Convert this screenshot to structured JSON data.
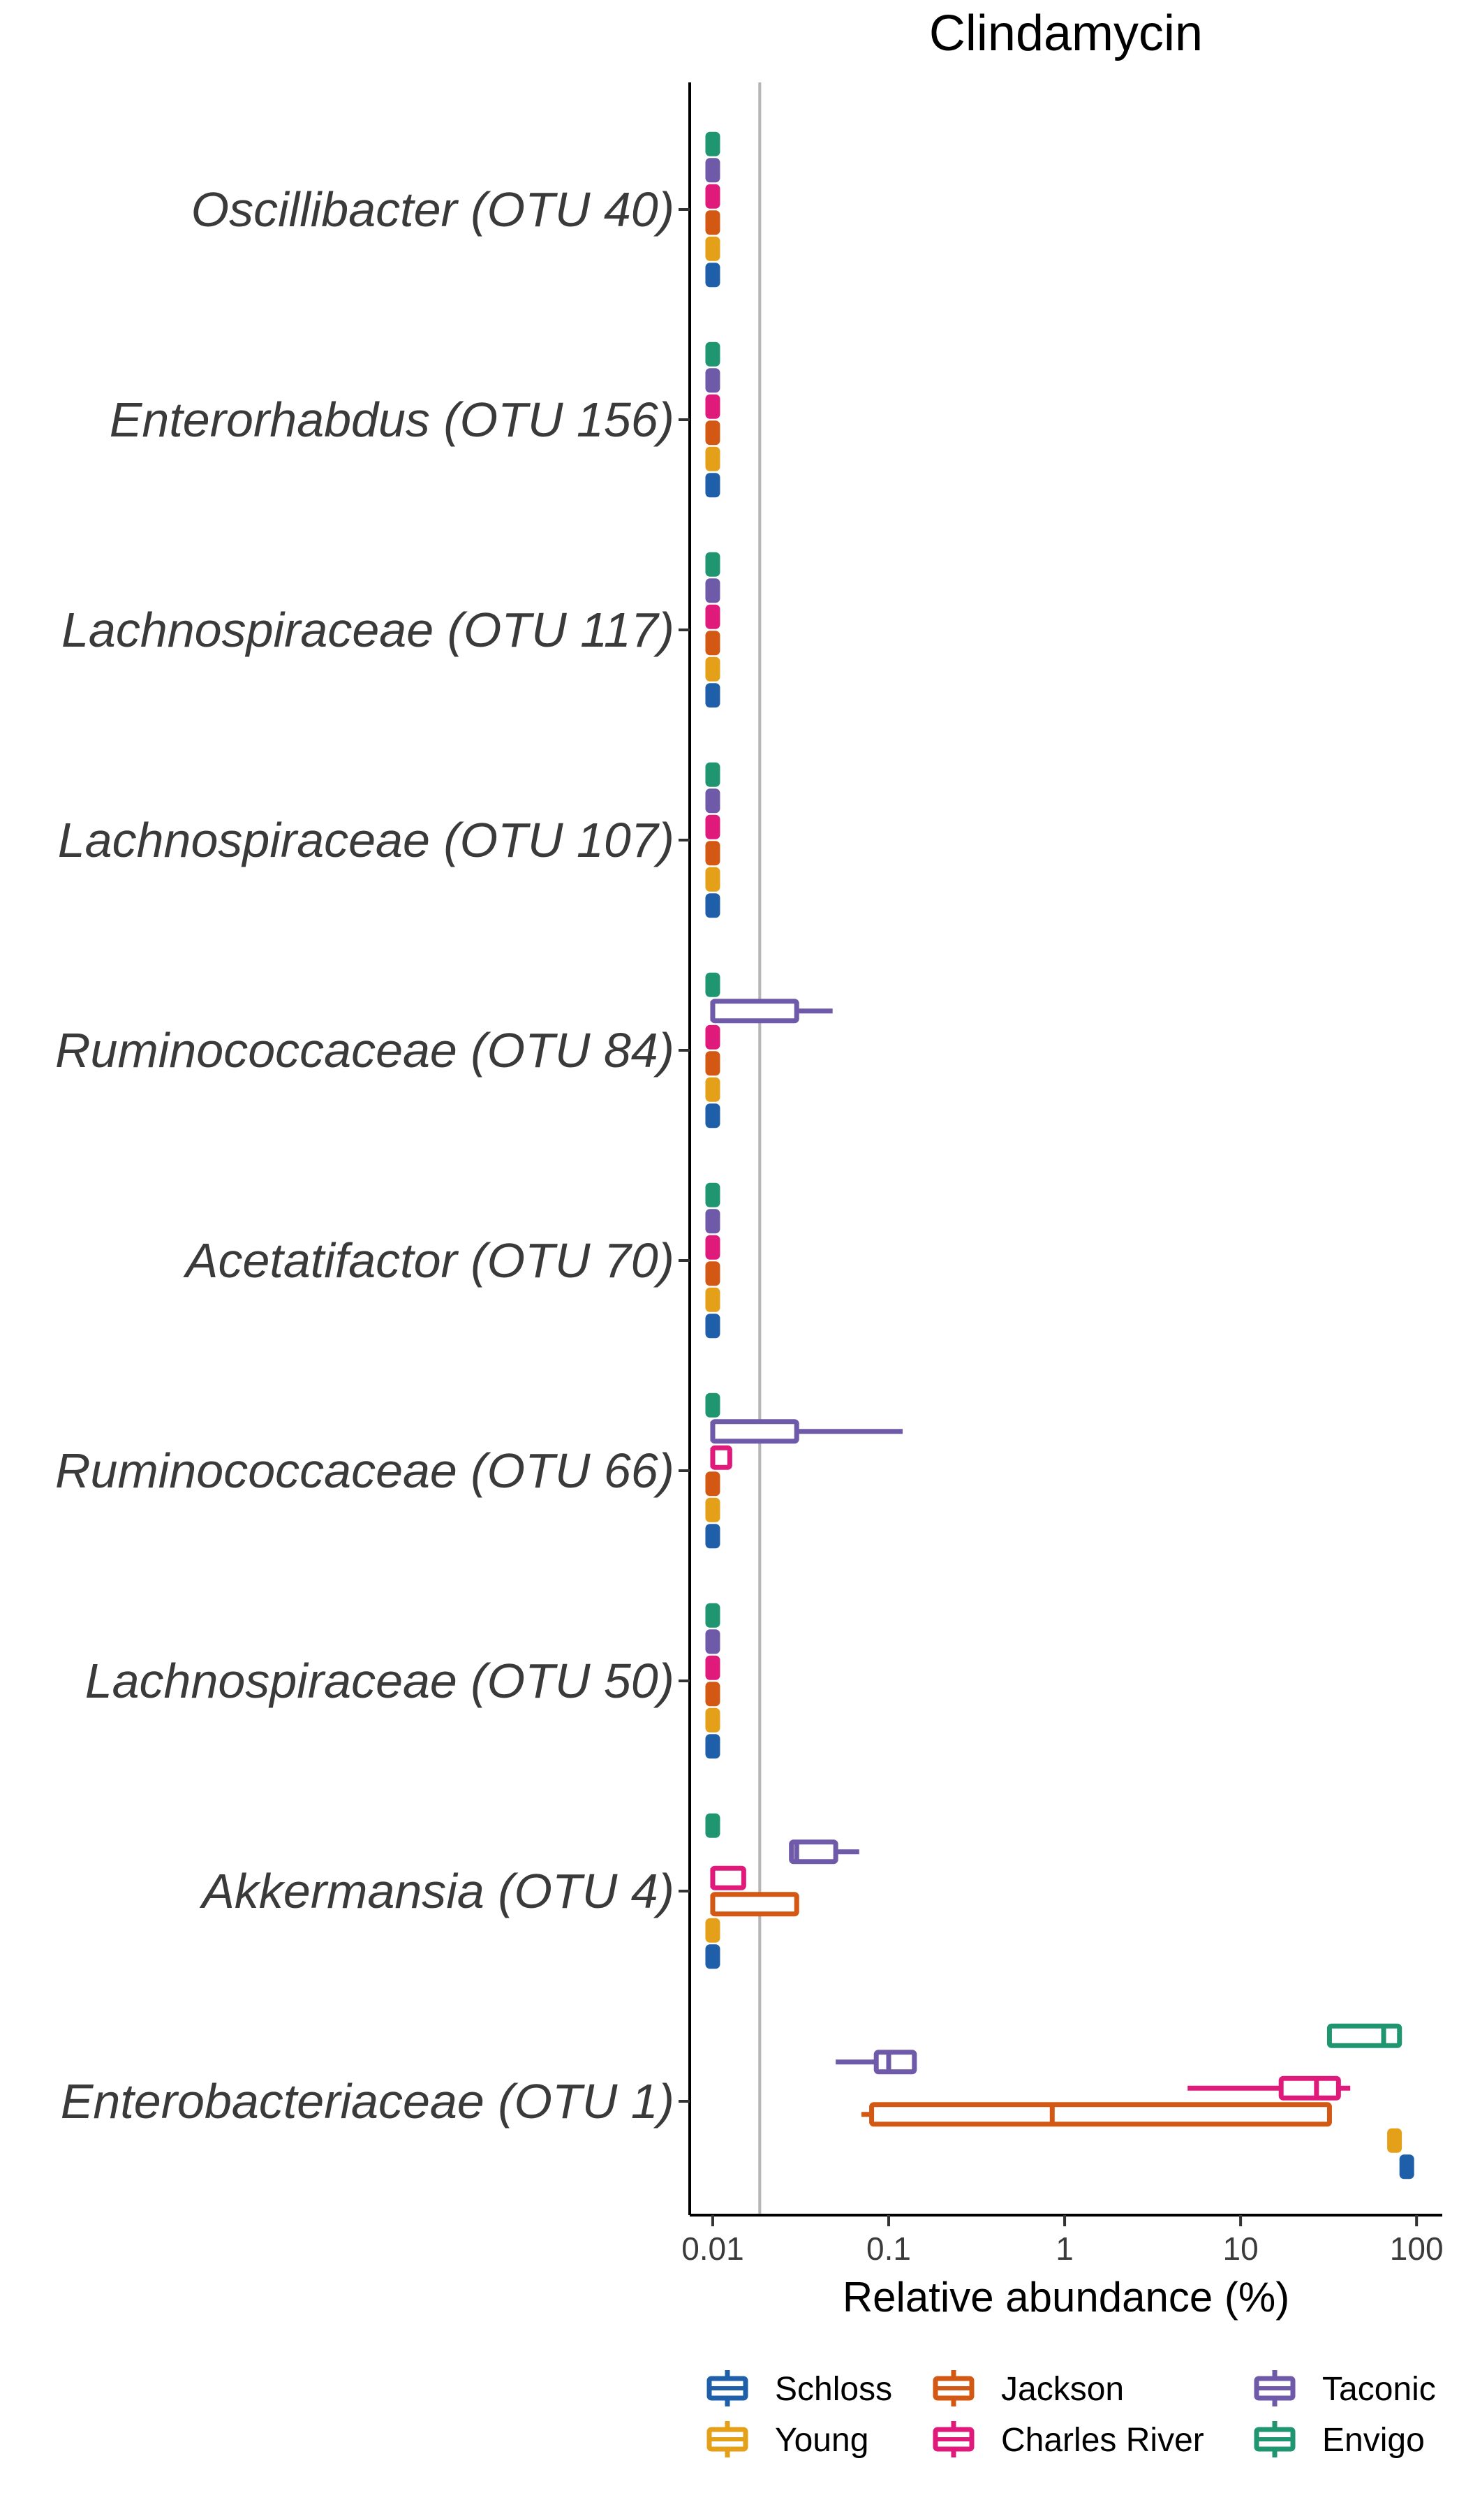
{
  "chart_data": {
    "type": "boxplot-horizontal",
    "title": "Clindamycin",
    "xlabel": "Relative abundance (%)",
    "x_scale": "log10",
    "xlim": [
      0.0074,
      140
    ],
    "x_ticks": [
      {
        "value": 0.01,
        "label": "0.01"
      },
      {
        "value": 0.1,
        "label": "0.1"
      },
      {
        "value": 1,
        "label": "1"
      },
      {
        "value": 10,
        "label": "10"
      },
      {
        "value": 100,
        "label": "100"
      }
    ],
    "reference_line": 0.0185,
    "grid": false,
    "legend_position": "bottom",
    "vendors": [
      {
        "name": "Schloss",
        "color": "#1f5fa9"
      },
      {
        "name": "Young",
        "color": "#e5a01a"
      },
      {
        "name": "Jackson",
        "color": "#d35813"
      },
      {
        "name": "Charles River",
        "color": "#df1a7b"
      },
      {
        "name": "Taconic",
        "color": "#6e5aa8"
      },
      {
        "name": "Envigo",
        "color": "#1f9670"
      }
    ],
    "categories": [
      "Oscillibacter (OTU 40)",
      "Enterorhabdus (OTU 156)",
      "Lachnospiraceae (OTU 117)",
      "Lachnospiraceae (OTU 107)",
      "Ruminococcaceae (OTU 84)",
      "Acetatifactor (OTU 70)",
      "Ruminococcaceae (OTU 66)",
      "Lachnospiraceae (OTU 50)",
      "Akkermansia (OTU 4)",
      "Enterobacteriaceae (OTU 1)"
    ],
    "series": [
      {
        "category": "Oscillibacter (OTU 40)",
        "boxes": [
          {
            "vendor": "Schloss",
            "min": 0.01,
            "q1": 0.01,
            "median": 0.01,
            "q3": 0.01,
            "max": 0.01
          },
          {
            "vendor": "Young",
            "min": 0.01,
            "q1": 0.01,
            "median": 0.01,
            "q3": 0.01,
            "max": 0.01
          },
          {
            "vendor": "Jackson",
            "min": 0.01,
            "q1": 0.01,
            "median": 0.01,
            "q3": 0.01,
            "max": 0.01
          },
          {
            "vendor": "Charles River",
            "min": 0.01,
            "q1": 0.01,
            "median": 0.01,
            "q3": 0.01,
            "max": 0.01
          },
          {
            "vendor": "Taconic",
            "min": 0.01,
            "q1": 0.01,
            "median": 0.01,
            "q3": 0.01,
            "max": 0.01
          },
          {
            "vendor": "Envigo",
            "min": 0.01,
            "q1": 0.01,
            "median": 0.01,
            "q3": 0.01,
            "max": 0.01
          }
        ]
      },
      {
        "category": "Enterorhabdus (OTU 156)",
        "boxes": [
          {
            "vendor": "Schloss",
            "min": 0.01,
            "q1": 0.01,
            "median": 0.01,
            "q3": 0.01,
            "max": 0.01
          },
          {
            "vendor": "Young",
            "min": 0.01,
            "q1": 0.01,
            "median": 0.01,
            "q3": 0.01,
            "max": 0.01
          },
          {
            "vendor": "Jackson",
            "min": 0.01,
            "q1": 0.01,
            "median": 0.01,
            "q3": 0.01,
            "max": 0.01
          },
          {
            "vendor": "Charles River",
            "min": 0.01,
            "q1": 0.01,
            "median": 0.01,
            "q3": 0.01,
            "max": 0.01
          },
          {
            "vendor": "Taconic",
            "min": 0.01,
            "q1": 0.01,
            "median": 0.01,
            "q3": 0.01,
            "max": 0.01
          },
          {
            "vendor": "Envigo",
            "min": 0.01,
            "q1": 0.01,
            "median": 0.01,
            "q3": 0.01,
            "max": 0.01
          }
        ]
      },
      {
        "category": "Lachnospiraceae (OTU 117)",
        "boxes": [
          {
            "vendor": "Schloss",
            "min": 0.01,
            "q1": 0.01,
            "median": 0.01,
            "q3": 0.01,
            "max": 0.01
          },
          {
            "vendor": "Young",
            "min": 0.01,
            "q1": 0.01,
            "median": 0.01,
            "q3": 0.01,
            "max": 0.01
          },
          {
            "vendor": "Jackson",
            "min": 0.01,
            "q1": 0.01,
            "median": 0.01,
            "q3": 0.01,
            "max": 0.01
          },
          {
            "vendor": "Charles River",
            "min": 0.01,
            "q1": 0.01,
            "median": 0.01,
            "q3": 0.01,
            "max": 0.01
          },
          {
            "vendor": "Taconic",
            "min": 0.01,
            "q1": 0.01,
            "median": 0.01,
            "q3": 0.01,
            "max": 0.01
          },
          {
            "vendor": "Envigo",
            "min": 0.01,
            "q1": 0.01,
            "median": 0.01,
            "q3": 0.01,
            "max": 0.01
          }
        ]
      },
      {
        "category": "Lachnospiraceae (OTU 107)",
        "boxes": [
          {
            "vendor": "Schloss",
            "min": 0.01,
            "q1": 0.01,
            "median": 0.01,
            "q3": 0.01,
            "max": 0.01
          },
          {
            "vendor": "Young",
            "min": 0.01,
            "q1": 0.01,
            "median": 0.01,
            "q3": 0.01,
            "max": 0.01
          },
          {
            "vendor": "Jackson",
            "min": 0.01,
            "q1": 0.01,
            "median": 0.01,
            "q3": 0.01,
            "max": 0.01
          },
          {
            "vendor": "Charles River",
            "min": 0.01,
            "q1": 0.01,
            "median": 0.01,
            "q3": 0.01,
            "max": 0.01
          },
          {
            "vendor": "Taconic",
            "min": 0.01,
            "q1": 0.01,
            "median": 0.01,
            "q3": 0.01,
            "max": 0.01
          },
          {
            "vendor": "Envigo",
            "min": 0.01,
            "q1": 0.01,
            "median": 0.01,
            "q3": 0.01,
            "max": 0.01
          }
        ]
      },
      {
        "category": "Ruminococcaceae (OTU 84)",
        "boxes": [
          {
            "vendor": "Schloss",
            "min": 0.01,
            "q1": 0.01,
            "median": 0.01,
            "q3": 0.01,
            "max": 0.01
          },
          {
            "vendor": "Young",
            "min": 0.01,
            "q1": 0.01,
            "median": 0.01,
            "q3": 0.01,
            "max": 0.01
          },
          {
            "vendor": "Jackson",
            "min": 0.01,
            "q1": 0.01,
            "median": 0.01,
            "q3": 0.01,
            "max": 0.01
          },
          {
            "vendor": "Charles River",
            "min": 0.01,
            "q1": 0.01,
            "median": 0.01,
            "q3": 0.01,
            "max": 0.01
          },
          {
            "vendor": "Taconic",
            "min": 0.01,
            "q1": 0.01,
            "median": 0.01,
            "q3": 0.03,
            "max": 0.048
          },
          {
            "vendor": "Envigo",
            "min": 0.01,
            "q1": 0.01,
            "median": 0.01,
            "q3": 0.01,
            "max": 0.01
          }
        ]
      },
      {
        "category": "Acetatifactor (OTU 70)",
        "boxes": [
          {
            "vendor": "Schloss",
            "min": 0.01,
            "q1": 0.01,
            "median": 0.01,
            "q3": 0.01,
            "max": 0.01
          },
          {
            "vendor": "Young",
            "min": 0.01,
            "q1": 0.01,
            "median": 0.01,
            "q3": 0.01,
            "max": 0.01
          },
          {
            "vendor": "Jackson",
            "min": 0.01,
            "q1": 0.01,
            "median": 0.01,
            "q3": 0.01,
            "max": 0.01
          },
          {
            "vendor": "Charles River",
            "min": 0.01,
            "q1": 0.01,
            "median": 0.01,
            "q3": 0.01,
            "max": 0.01
          },
          {
            "vendor": "Taconic",
            "min": 0.01,
            "q1": 0.01,
            "median": 0.01,
            "q3": 0.01,
            "max": 0.01
          },
          {
            "vendor": "Envigo",
            "min": 0.01,
            "q1": 0.01,
            "median": 0.01,
            "q3": 0.01,
            "max": 0.01
          }
        ]
      },
      {
        "category": "Ruminococcaceae (OTU 66)",
        "boxes": [
          {
            "vendor": "Schloss",
            "min": 0.01,
            "q1": 0.01,
            "median": 0.01,
            "q3": 0.01,
            "max": 0.01
          },
          {
            "vendor": "Young",
            "min": 0.01,
            "q1": 0.01,
            "median": 0.01,
            "q3": 0.01,
            "max": 0.01
          },
          {
            "vendor": "Jackson",
            "min": 0.01,
            "q1": 0.01,
            "median": 0.01,
            "q3": 0.01,
            "max": 0.01
          },
          {
            "vendor": "Charles River",
            "min": 0.01,
            "q1": 0.01,
            "median": 0.01,
            "q3": 0.0125,
            "max": 0.0125
          },
          {
            "vendor": "Taconic",
            "min": 0.01,
            "q1": 0.01,
            "median": 0.01,
            "q3": 0.03,
            "max": 0.12
          },
          {
            "vendor": "Envigo",
            "min": 0.01,
            "q1": 0.01,
            "median": 0.01,
            "q3": 0.01,
            "max": 0.01
          }
        ]
      },
      {
        "category": "Lachnospiraceae (OTU 50)",
        "boxes": [
          {
            "vendor": "Schloss",
            "min": 0.01,
            "q1": 0.01,
            "median": 0.01,
            "q3": 0.01,
            "max": 0.01
          },
          {
            "vendor": "Young",
            "min": 0.01,
            "q1": 0.01,
            "median": 0.01,
            "q3": 0.01,
            "max": 0.01
          },
          {
            "vendor": "Jackson",
            "min": 0.01,
            "q1": 0.01,
            "median": 0.01,
            "q3": 0.01,
            "max": 0.01
          },
          {
            "vendor": "Charles River",
            "min": 0.01,
            "q1": 0.01,
            "median": 0.01,
            "q3": 0.01,
            "max": 0.01
          },
          {
            "vendor": "Taconic",
            "min": 0.01,
            "q1": 0.01,
            "median": 0.01,
            "q3": 0.01,
            "max": 0.01
          },
          {
            "vendor": "Envigo",
            "min": 0.01,
            "q1": 0.01,
            "median": 0.01,
            "q3": 0.01,
            "max": 0.01
          }
        ]
      },
      {
        "category": "Akkermansia (OTU 4)",
        "boxes": [
          {
            "vendor": "Schloss",
            "min": 0.01,
            "q1": 0.01,
            "median": 0.01,
            "q3": 0.01,
            "max": 0.01
          },
          {
            "vendor": "Young",
            "min": 0.01,
            "q1": 0.01,
            "median": 0.01,
            "q3": 0.01,
            "max": 0.01
          },
          {
            "vendor": "Jackson",
            "min": 0.01,
            "q1": 0.01,
            "median": 0.01,
            "q3": 0.03,
            "max": 0.03
          },
          {
            "vendor": "Charles River",
            "min": 0.01,
            "q1": 0.01,
            "median": 0.01,
            "q3": 0.015,
            "max": 0.015
          },
          {
            "vendor": "Taconic",
            "min": 0.028,
            "q1": 0.028,
            "median": 0.03,
            "q3": 0.05,
            "max": 0.068
          },
          {
            "vendor": "Envigo",
            "min": 0.01,
            "q1": 0.01,
            "median": 0.01,
            "q3": 0.01,
            "max": 0.01
          }
        ]
      },
      {
        "category": "Enterobacteriaceae (OTU 1)",
        "boxes": [
          {
            "vendor": "Schloss",
            "min": 88,
            "q1": 88,
            "median": 88,
            "q3": 88,
            "max": 88
          },
          {
            "vendor": "Young",
            "min": 72,
            "q1": 72,
            "median": 75,
            "q3": 78,
            "max": 78
          },
          {
            "vendor": "Jackson",
            "min": 0.07,
            "q1": 0.08,
            "median": 0.85,
            "q3": 32,
            "max": 32
          },
          {
            "vendor": "Charles River",
            "min": 5,
            "q1": 17,
            "median": 27,
            "q3": 36,
            "max": 42
          },
          {
            "vendor": "Taconic",
            "min": 0.05,
            "q1": 0.085,
            "median": 0.1,
            "q3": 0.14,
            "max": 0.14
          },
          {
            "vendor": "Envigo",
            "min": 32,
            "q1": 32,
            "median": 65,
            "q3": 80,
            "max": 80
          }
        ]
      }
    ]
  }
}
